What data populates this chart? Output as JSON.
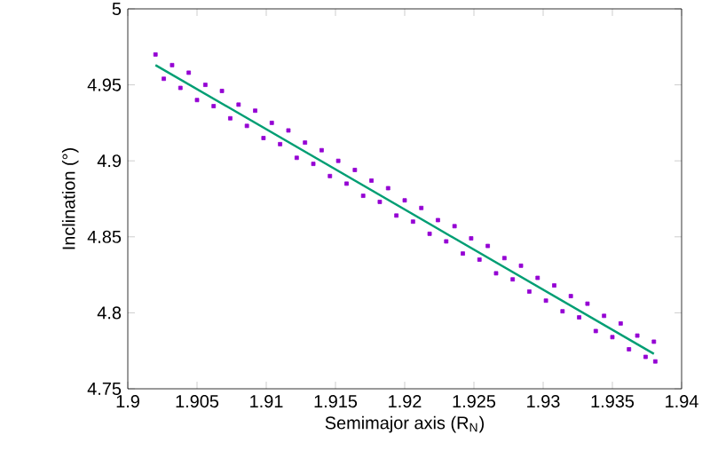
{
  "chart_data": {
    "type": "scatter",
    "xlabel": "Semimajor axis (R$_{N}$)",
    "ylabel": "Inclination (°)",
    "xlim": [
      1.9,
      1.94
    ],
    "ylim": [
      4.75,
      5
    ],
    "xticks": [
      1.9,
      1.905,
      1.91,
      1.915,
      1.92,
      1.925,
      1.93,
      1.935,
      1.94
    ],
    "yticks": [
      4.75,
      4.8,
      4.85,
      4.9,
      4.95,
      5
    ],
    "grid": false,
    "series": [
      {
        "type": "scatter",
        "color": "#9400d3",
        "marker": "square",
        "x": [
          1.902,
          1.9032,
          1.9044,
          1.9056,
          1.9068,
          1.908,
          1.9092,
          1.9104,
          1.9116,
          1.9128,
          1.914,
          1.9152,
          1.9164,
          1.9176,
          1.9188,
          1.92,
          1.9212,
          1.9224,
          1.9236,
          1.9248,
          1.926,
          1.9272,
          1.9284,
          1.9296,
          1.9308,
          1.932,
          1.9332,
          1.9344,
          1.9356,
          1.9368,
          1.938,
          1.9026,
          1.9038,
          1.905,
          1.9062,
          1.9074,
          1.9086,
          1.9098,
          1.911,
          1.9122,
          1.9134,
          1.9146,
          1.9158,
          1.917,
          1.9182,
          1.9194,
          1.9206,
          1.9218,
          1.923,
          1.9242,
          1.9254,
          1.9266,
          1.9278,
          1.929,
          1.9302,
          1.9314,
          1.9326,
          1.9338,
          1.935,
          1.9362,
          1.9374,
          1.9381
        ],
        "values": [
          4.97,
          4.963,
          4.958,
          4.95,
          4.946,
          4.937,
          4.933,
          4.925,
          4.92,
          4.912,
          4.907,
          4.9,
          4.894,
          4.887,
          4.882,
          4.874,
          4.869,
          4.861,
          4.857,
          4.849,
          4.844,
          4.836,
          4.831,
          4.823,
          4.818,
          4.811,
          4.806,
          4.798,
          4.793,
          4.785,
          4.781,
          4.954,
          4.948,
          4.94,
          4.936,
          4.928,
          4.923,
          4.915,
          4.911,
          4.902,
          4.898,
          4.89,
          4.885,
          4.877,
          4.873,
          4.864,
          4.86,
          4.852,
          4.847,
          4.839,
          4.835,
          4.826,
          4.822,
          4.814,
          4.808,
          4.801,
          4.797,
          4.788,
          4.784,
          4.776,
          4.771,
          4.768
        ]
      },
      {
        "type": "line",
        "color": "#009e73",
        "marker": "none",
        "line_style": "solid",
        "x": [
          1.902,
          1.938
        ],
        "values": [
          4.963,
          4.773
        ]
      }
    ]
  }
}
